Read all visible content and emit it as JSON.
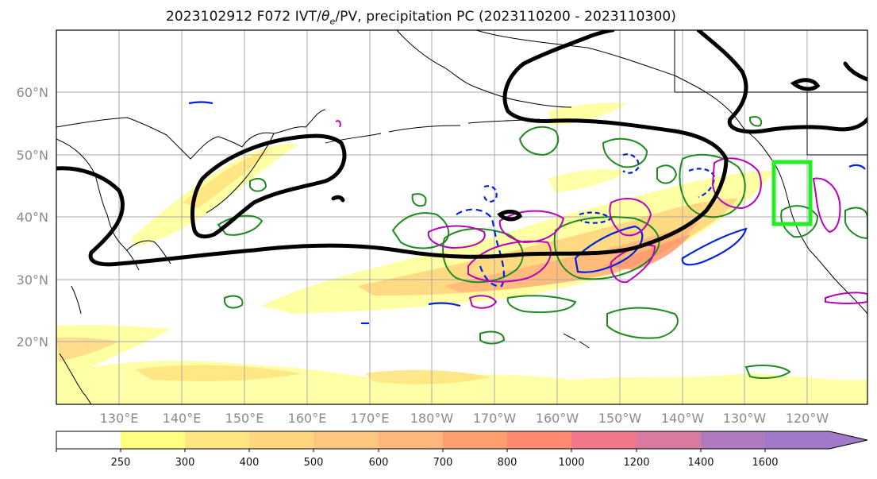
{
  "title": {
    "prefix": "2023102912 F072 IVT/",
    "theta": "θ",
    "theta_sub": "e",
    "suffix": "/PV, precipitation PC (2023110200 - 2023110300)"
  },
  "map": {
    "lat_labels": [
      "60°N",
      "50°N",
      "40°N",
      "30°N",
      "20°N"
    ],
    "lon_labels": [
      "130°E",
      "140°E",
      "150°E",
      "160°E",
      "170°E",
      "180°W",
      "170°W",
      "160°W",
      "150°W",
      "140°W",
      "130°W",
      "120°W"
    ],
    "colors": {
      "ivt_contour": "#000000",
      "theta_e": "#1f8a1f",
      "pv_neg": "#0022dd",
      "precip_pc": "#bb00bb",
      "highlight_box": "#22ee22",
      "grid": "#aaaaaa",
      "coast": "#000000"
    }
  },
  "colorbar": {
    "ticks": [
      "250",
      "300",
      "400",
      "500",
      "600",
      "700",
      "800",
      "1000",
      "1200",
      "1400",
      "1600"
    ],
    "colors": [
      "#ffffff",
      "#ffff80",
      "#ffe680",
      "#ffd680",
      "#ffc680",
      "#ffb67a",
      "#ff9f70",
      "#ff8a70",
      "#f0788a",
      "#d97aa0",
      "#b07ac0",
      "#a07ac8"
    ]
  }
}
